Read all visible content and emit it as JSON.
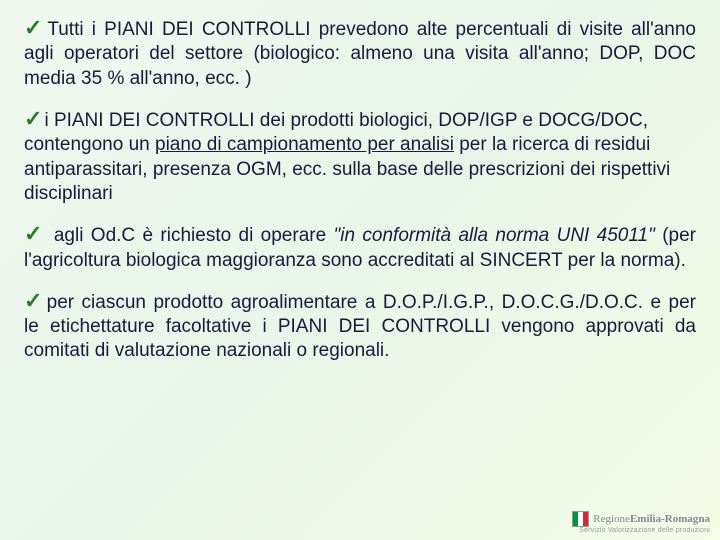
{
  "check_glyph": "✓",
  "paragraphs": [
    {
      "html": "Tutti i PIANI DEI CONTROLLI prevedono alte percentuali di visite all'anno agli operatori del settore (biologico: almeno una visita all'anno; DOP, DOC media 35 % all'anno, ecc. )",
      "justify": true
    },
    {
      "html": "i PIANI DEI CONTROLLI dei prodotti biologici, DOP/IGP e DOCG/DOC, contengono un <span class=\"underline\">piano di campionamento per analisi</span> per la ricerca di residui antiparassitari, presenza OGM, ecc. sulla base delle prescrizioni dei rispettivi disciplinari",
      "justify": false
    },
    {
      "html": " agli Od.C è richiesto di operare <span class=\"italic\">\"in conformità alla norma UNI 45011\"</span> (per l'agricoltura biologica maggioranza sono accreditati al SINCERT per la norma).",
      "justify": true
    },
    {
      "html": "per ciascun prodotto agroalimentare a D.O.P./I.G.P., D.O.C.G./D.O.C. e per le etichettature facoltative i PIANI DEI CONTROLLI vengono approvati da comitati di valutazione nazionali o regionali.",
      "justify": true
    }
  ],
  "logo": {
    "region_line1": "Regione",
    "region_line2": "Emilia-Romagna",
    "subtitle": "Servizio Valorizzazione delle produzioni"
  },
  "colors": {
    "check": "#2a7a2a",
    "text": "#1a1a3a",
    "bg_start": "#f0f8f0",
    "bg_end": "#f5fce8"
  }
}
